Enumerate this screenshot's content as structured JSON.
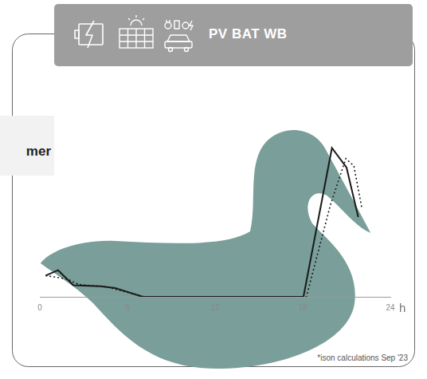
{
  "header": {
    "label": "PV BAT WB"
  },
  "side_label": "mer",
  "footnote": "*ison calculations Sep '23",
  "chart_data": {
    "type": "line",
    "x_label": "h",
    "xlim": [
      0,
      24
    ],
    "xticks": [
      0,
      6,
      12,
      18,
      24
    ],
    "ylim": [
      0,
      10
    ],
    "grid": false,
    "tick_labels": "x",
    "series": [
      {
        "color": "#1a1a1a",
        "line_style": "solid",
        "marker": "none",
        "x": [
          0.4,
          1.25,
          2.3,
          4.15,
          5.15,
          7.05,
          18.05,
          20,
          21,
          21.8
        ],
        "values": [
          1.2,
          1.5,
          0.65,
          0.6,
          0.5,
          0,
          0,
          8.4,
          7.3,
          4.5
        ]
      },
      {
        "color": "#1a1a1a",
        "line_style": "dotted",
        "marker": "none",
        "x": [
          0.4,
          1.9,
          2.65,
          4.65,
          7.15,
          18.25,
          19.9,
          20.95,
          21.5,
          22.05
        ],
        "values": [
          1.2,
          1.0,
          0.7,
          0.55,
          0,
          0,
          5.2,
          7.8,
          7.4,
          5.0
        ]
      }
    ]
  }
}
